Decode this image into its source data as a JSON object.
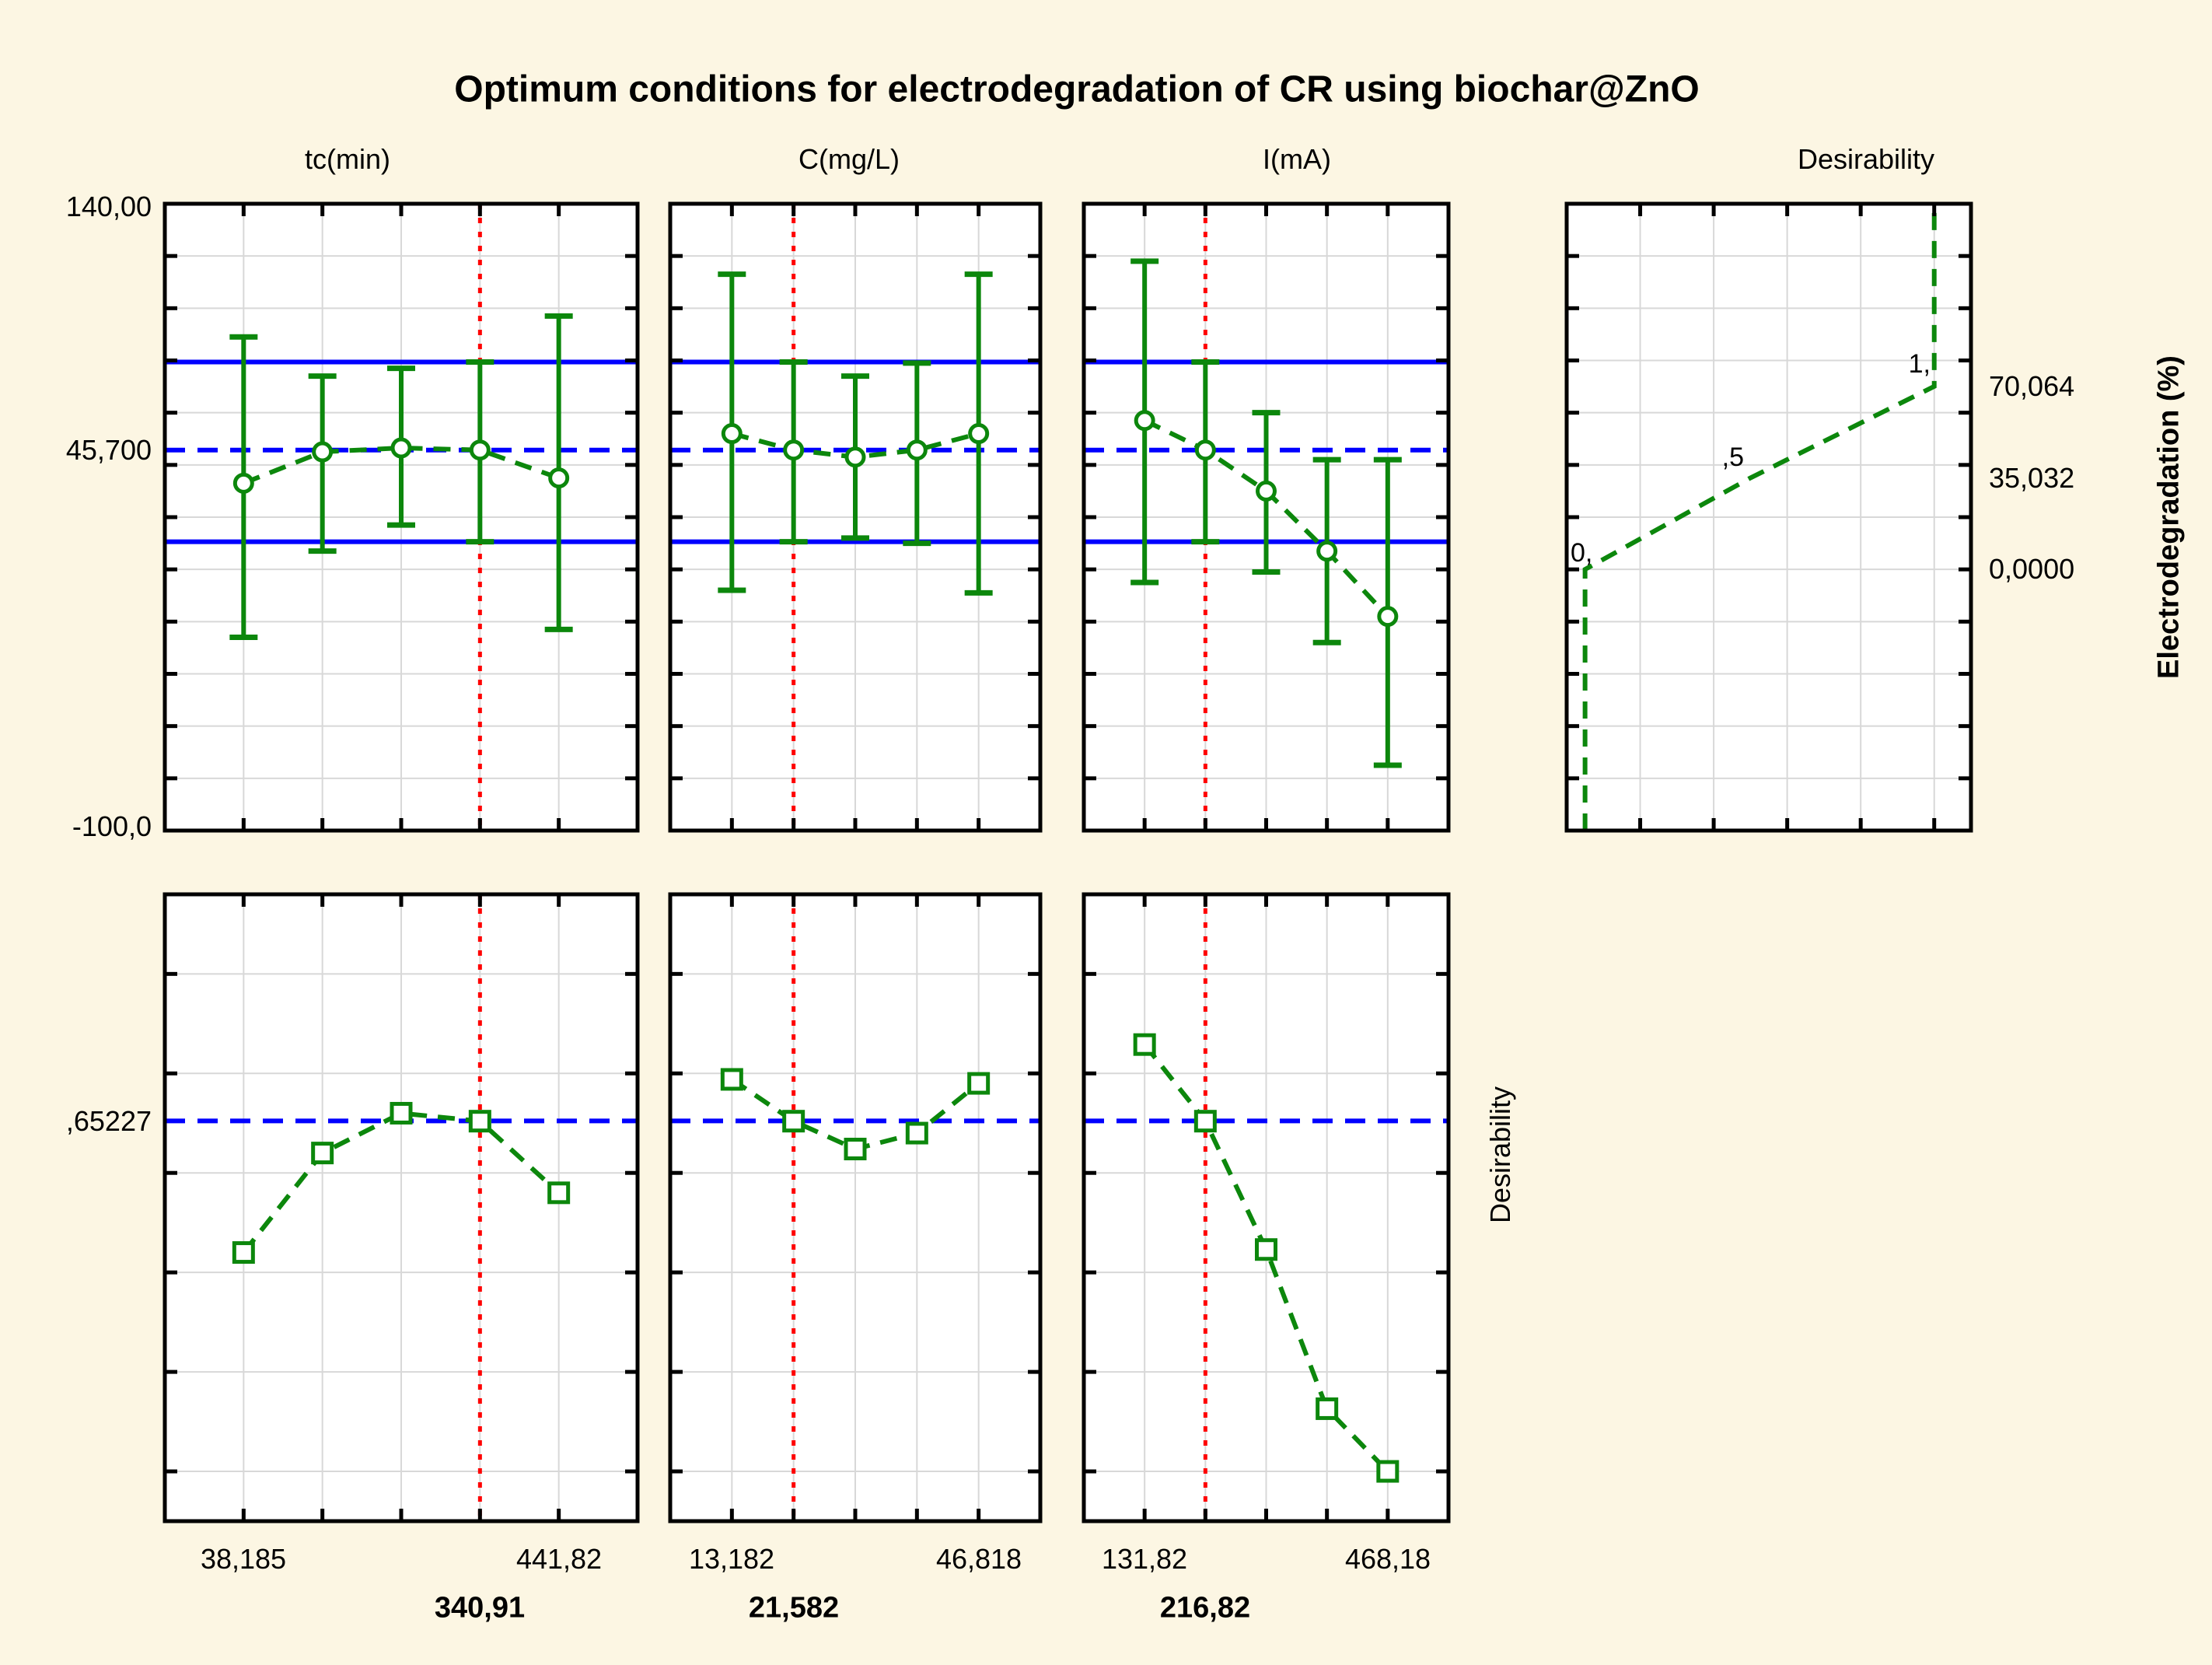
{
  "title": "Optimum conditions for electrodegradation of CR using biochar@ZnO",
  "colors": {
    "background": "#FCF6E3",
    "plot_background": "#FFFFFF",
    "border": "#000000",
    "grid": "#D8D8D8",
    "series_green": "#0C870C",
    "confidence_blue": "#0000FF",
    "current_value_red": "#FF0000",
    "text": "#000000"
  },
  "axis_text": {
    "left_top": "140,00",
    "left_mid": "45,700",
    "left_bottom": "-100,0",
    "left_desirability": ",65227",
    "right_high": "70,064",
    "right_mid": "35,032",
    "right_low": "0,0000",
    "right_title": "Electrodegradation (%)",
    "desirability_row_title": "Desirability",
    "fn_zero": "0,",
    "fn_half": ",5",
    "fn_one": "1,"
  },
  "chart_data": {
    "type": "line",
    "subtype": "desirability-profile-grid",
    "response": {
      "name": "Electrodegradation (%)",
      "y_range": [
        -100,
        140
      ],
      "grid_step": 20,
      "predicted_value": 45.7,
      "confidence_band": [
        10.6,
        79.4
      ],
      "y_tick_labels": [
        "140,00",
        "45,700",
        "-100,0"
      ]
    },
    "desirability_scale": {
      "range": [
        0.25,
        0.88
      ],
      "grid_values": [
        0.3,
        0.4,
        0.5,
        0.6,
        0.7,
        0.8
      ],
      "overall_desirability": 0.65227,
      "overall_label": ",65227"
    },
    "desirability_function": {
      "title": "Desirability",
      "x_range": [
        0,
        1.1
      ],
      "x_grid_values": [
        0.2,
        0.4,
        0.6,
        0.8,
        1.0
      ],
      "clamp_low_x": 0.05,
      "clamp_high_x": 1.0,
      "nodes": [
        {
          "desirability": 0.0,
          "value": 0.0,
          "label": "0,",
          "right_label": "0,0000"
        },
        {
          "desirability": 0.5,
          "value": 35.032,
          "label": ",5",
          "right_label": "35,032"
        },
        {
          "desirability": 1.0,
          "value": 70.064,
          "label": "1,",
          "right_label": "70,064"
        }
      ]
    },
    "factors": [
      {
        "header": "tc(min)",
        "x_values": [
          38.185,
          139.09,
          240.0,
          340.91,
          441.82
        ],
        "x_min_label": "38,185",
        "x_max_label": "441,82",
        "current_label": "340,91",
        "current_index": 3,
        "profile": {
          "y": [
            33,
            45,
            46.5,
            45.7,
            35
          ],
          "ci_low": [
            -26,
            7,
            17,
            10.6,
            -23
          ],
          "ci_high": [
            89,
            74,
            77,
            79.4,
            97
          ]
        },
        "desirability": [
          0.52,
          0.62,
          0.66,
          0.652,
          0.58
        ]
      },
      {
        "header": "C(mg/L)",
        "x_values": [
          13.182,
          21.591,
          30.0,
          38.409,
          46.818
        ],
        "x_min_label": "13,182",
        "x_max_label": "46,818",
        "current_label": "21,582",
        "current_index": 1,
        "profile": {
          "y": [
            52,
            45.7,
            43,
            45.7,
            52
          ],
          "ci_low": [
            -8,
            10.6,
            12,
            10,
            -9
          ],
          "ci_high": [
            113,
            79.4,
            74,
            79,
            113
          ]
        },
        "desirability": [
          0.694,
          0.652,
          0.624,
          0.64,
          0.69
        ]
      },
      {
        "header": "I(mA)",
        "x_values": [
          131.82,
          215.91,
          300.0,
          384.09,
          468.18
        ],
        "x_min_label": "131,82",
        "x_max_label": "468,18",
        "current_label": "216,82",
        "current_index": 1,
        "profile": {
          "y": [
            57,
            45.7,
            30,
            7,
            -18
          ],
          "ci_low": [
            -5,
            10.6,
            -1,
            -28,
            -75
          ],
          "ci_high": [
            118,
            79.4,
            60,
            42,
            42
          ]
        },
        "desirability": [
          0.729,
          0.652,
          0.523,
          0.363,
          0.3
        ]
      }
    ]
  }
}
